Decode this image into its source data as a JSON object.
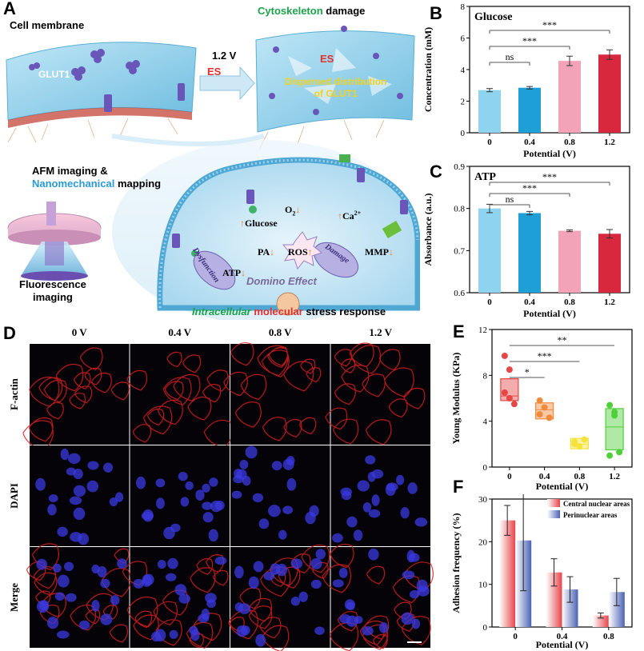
{
  "panels": {
    "A": "A",
    "B": "B",
    "C": "C",
    "D": "D",
    "E": "E",
    "F": "F"
  },
  "schematic": {
    "cell_membrane": "Cell membrane",
    "glut1": "GLUT1",
    "voltage": "1.2 V",
    "es": "ES",
    "es2": "ES",
    "cytoskeleton_word": "Cytoskeleton",
    "damage_word": " damage",
    "dispersed_line1": "Dispersed distribution",
    "dispersed_line2": "of GLUT1",
    "afm_line1": "AFM imaging &",
    "afm_nano": "Nanomechanical",
    "afm_mapping": " mapping",
    "fluor_line1": "Fluorescence",
    "fluor_line2": "imaging",
    "glucose": "Glucose",
    "o2": "O",
    "o2_sub": "2",
    "ca": "Ca",
    "ca_sup": "2+",
    "pa": "PA",
    "ros": "ROS",
    "mmp": "MMP",
    "atp": "ATP",
    "dysfunction": "Dysfunction",
    "damage": "Damage",
    "domino": "Domino Effect",
    "stress_w1": "Intracellular",
    "stress_w2": " molecular",
    "stress_w3": " stress response"
  },
  "micrographs": {
    "columns": [
      "0 V",
      "0.4 V",
      "0.8 V",
      "1.2 V"
    ],
    "rows": [
      "F-actin",
      "DAPI",
      "Merge"
    ]
  },
  "colors": {
    "c0": "#8ed3ef",
    "c04": "#1e9fd8",
    "c08": "#f2a3b8",
    "c12": "#d8283e",
    "e0": "#e64646",
    "e04": "#f08a3c",
    "e08": "#f5e23a",
    "e12": "#4fcf3a",
    "f_red": "#e8454c",
    "f_blue": "#4c63b5",
    "actin": "#d81f1f",
    "dapi": "#3a3ae0"
  },
  "chart_data": [
    {
      "panel": "B",
      "type": "bar",
      "title": "Glucose",
      "categories": [
        "0",
        "0.4",
        "0.8",
        "1.2"
      ],
      "values": [
        2.7,
        2.85,
        4.55,
        4.95
      ],
      "errors": [
        0.1,
        0.08,
        0.3,
        0.3
      ],
      "xlabel": "Potential (V)",
      "ylabel": "Concentration (mM)",
      "ylim": [
        0,
        8
      ],
      "yticks": [
        "0",
        "2",
        "4",
        "6",
        "8"
      ],
      "significance": [
        {
          "label": "ns",
          "from": 0,
          "to": 1
        },
        {
          "label": "***",
          "from": 0,
          "to": 2
        },
        {
          "label": "***",
          "from": 0,
          "to": 3
        }
      ]
    },
    {
      "panel": "C",
      "type": "bar",
      "title": "ATP",
      "categories": [
        "0",
        "0.4",
        "0.8",
        "1.2"
      ],
      "values": [
        0.8,
        0.789,
        0.747,
        0.74
      ],
      "errors": [
        0.01,
        0.004,
        0.002,
        0.01
      ],
      "xlabel": "Potential (V)",
      "ylabel": "Absorbance (a.u.)",
      "ylim": [
        0.6,
        0.9
      ],
      "yticks": [
        "0.6",
        "0.7",
        "0.8",
        "0.9"
      ],
      "significance": [
        {
          "label": "ns",
          "from": 0,
          "to": 1
        },
        {
          "label": "***",
          "from": 0,
          "to": 2
        },
        {
          "label": "***",
          "from": 0,
          "to": 3
        }
      ]
    },
    {
      "panel": "E",
      "type": "box",
      "categories": [
        "0",
        "0.4",
        "0.8",
        "1.2"
      ],
      "boxes": [
        {
          "q1": 5.8,
          "q3": 7.7,
          "median": 6.2,
          "points": [
            9.7,
            6.0,
            5.5,
            6.5,
            8.5
          ]
        },
        {
          "q1": 4.2,
          "q3": 5.6,
          "median": 5.0,
          "points": [
            5.8,
            5.2,
            4.3,
            4.6
          ]
        },
        {
          "q1": 1.6,
          "q3": 2.5,
          "median": 2.0,
          "points": [
            2.2,
            1.8,
            2.4,
            2.0
          ]
        },
        {
          "q1": 1.5,
          "q3": 5.1,
          "median": 3.5,
          "points": [
            5.4,
            4.5,
            1.3,
            1.0,
            4.8
          ]
        }
      ],
      "xlabel": "Potential (V)",
      "ylabel": "Young Modulus (KPa)",
      "ylim": [
        0,
        12
      ],
      "yticks": [
        "0",
        "4",
        "8",
        "12"
      ],
      "significance": [
        {
          "label": "*",
          "from": 0,
          "to": 1
        },
        {
          "label": "***",
          "from": 0,
          "to": 2
        },
        {
          "label": "**",
          "from": 0,
          "to": 3
        }
      ]
    },
    {
      "panel": "F",
      "type": "bar",
      "categories": [
        "0",
        "0.4",
        "0.8"
      ],
      "series": [
        {
          "name": "Central nuclear areas",
          "values": [
            25.0,
            12.8,
            2.7
          ],
          "errors": [
            3.5,
            3.2,
            0.6
          ]
        },
        {
          "name": "Perinuclear areas",
          "values": [
            20.3,
            8.8,
            8.2
          ],
          "errors": [
            11.8,
            3.0,
            3.2
          ]
        }
      ],
      "xlabel": "Potential (V)",
      "ylabel": "Adhesion frequency (%)",
      "ylim": [
        0,
        30
      ],
      "yticks": [
        "0",
        "10",
        "20",
        "30"
      ],
      "legend": "top-right"
    }
  ]
}
